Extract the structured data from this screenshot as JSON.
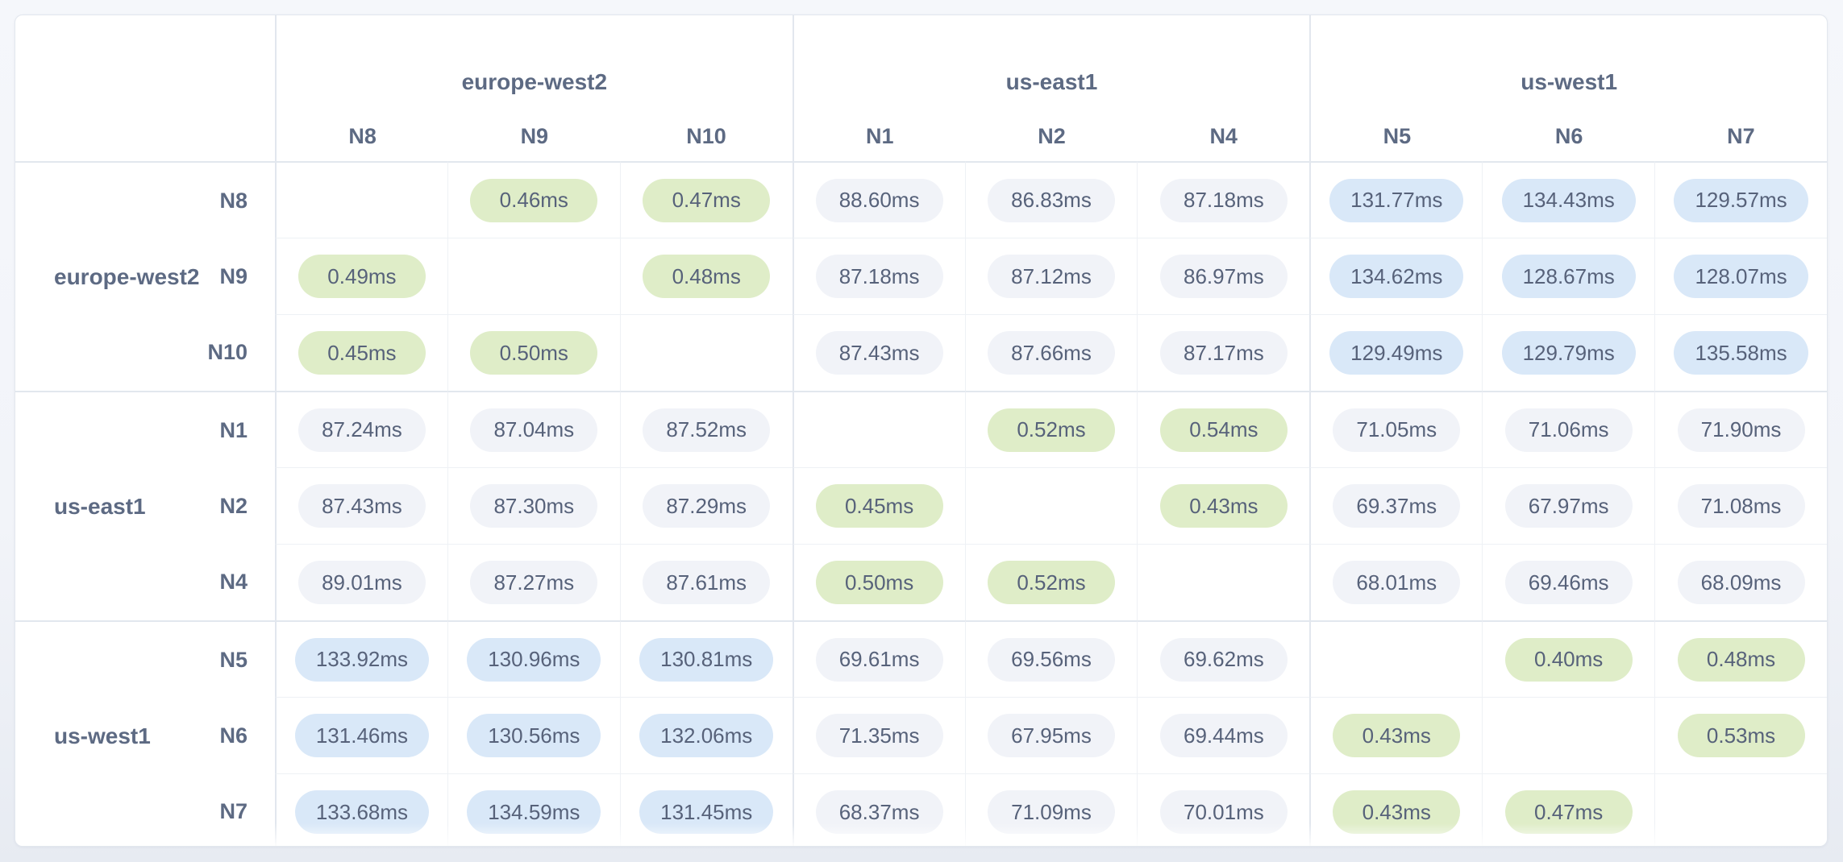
{
  "colors": {
    "pill_same_region": "#dfedc8",
    "pill_mid_latency": "#f1f3f8",
    "pill_high_latency": "#d9e8f8",
    "label_text": "#5d6a83",
    "value_text": "#57627a",
    "card_background": "#ffffff"
  },
  "matrix": {
    "unit": "ms",
    "col_groups": [
      {
        "region": "europe-west2",
        "nodes": [
          "N8",
          "N9",
          "N10"
        ]
      },
      {
        "region": "us-east1",
        "nodes": [
          "N1",
          "N2",
          "N4"
        ]
      },
      {
        "region": "us-west1",
        "nodes": [
          "N5",
          "N6",
          "N7"
        ]
      }
    ],
    "row_groups": [
      {
        "region": "europe-west2",
        "rows": [
          {
            "node": "N8",
            "cells": [
              null,
              "0.46ms",
              "0.47ms",
              "88.60ms",
              "86.83ms",
              "87.18ms",
              "131.77ms",
              "134.43ms",
              "129.57ms"
            ]
          },
          {
            "node": "N9",
            "cells": [
              "0.49ms",
              null,
              "0.48ms",
              "87.18ms",
              "87.12ms",
              "86.97ms",
              "134.62ms",
              "128.67ms",
              "128.07ms"
            ]
          },
          {
            "node": "N10",
            "cells": [
              "0.45ms",
              "0.50ms",
              null,
              "87.43ms",
              "87.66ms",
              "87.17ms",
              "129.49ms",
              "129.79ms",
              "135.58ms"
            ]
          }
        ]
      },
      {
        "region": "us-east1",
        "rows": [
          {
            "node": "N1",
            "cells": [
              "87.24ms",
              "87.04ms",
              "87.52ms",
              null,
              "0.52ms",
              "0.54ms",
              "71.05ms",
              "71.06ms",
              "71.90ms"
            ]
          },
          {
            "node": "N2",
            "cells": [
              "87.43ms",
              "87.30ms",
              "87.29ms",
              "0.45ms",
              null,
              "0.43ms",
              "69.37ms",
              "67.97ms",
              "71.08ms"
            ]
          },
          {
            "node": "N4",
            "cells": [
              "89.01ms",
              "87.27ms",
              "87.61ms",
              "0.50ms",
              "0.52ms",
              null,
              "68.01ms",
              "69.46ms",
              "68.09ms"
            ]
          }
        ]
      },
      {
        "region": "us-west1",
        "rows": [
          {
            "node": "N5",
            "cells": [
              "133.92ms",
              "130.96ms",
              "130.81ms",
              "69.61ms",
              "69.56ms",
              "69.62ms",
              null,
              "0.40ms",
              "0.48ms"
            ]
          },
          {
            "node": "N6",
            "cells": [
              "131.46ms",
              "130.56ms",
              "132.06ms",
              "71.35ms",
              "67.95ms",
              "69.44ms",
              "0.43ms",
              null,
              "0.53ms"
            ]
          },
          {
            "node": "N7",
            "cells": [
              "133.68ms",
              "134.59ms",
              "131.45ms",
              "68.37ms",
              "71.09ms",
              "70.01ms",
              "0.43ms",
              "0.47ms",
              null
            ]
          }
        ]
      }
    ]
  }
}
